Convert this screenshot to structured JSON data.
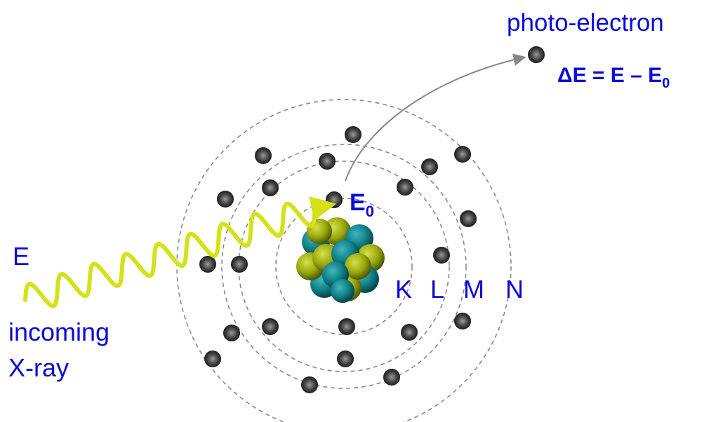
{
  "labels": {
    "photo_electron": "photo-electron",
    "delta_e_main": "ΔE = E – E",
    "delta_e_sub": "0",
    "e0_main": "E",
    "e0_sub": "0",
    "energy_in": "E",
    "incoming_line1": "incoming",
    "incoming_line2": "X-ray"
  },
  "shells": [
    "K",
    "L",
    "M",
    "N"
  ],
  "colors": {
    "text": "#0a0ad8",
    "xray": "#d4e21a",
    "orbit": "#888888",
    "arrow": "#888888",
    "electron": "#3a3a3a",
    "nucleus_teal": "#0f7f86",
    "nucleus_olive": "#9aa70c"
  }
}
